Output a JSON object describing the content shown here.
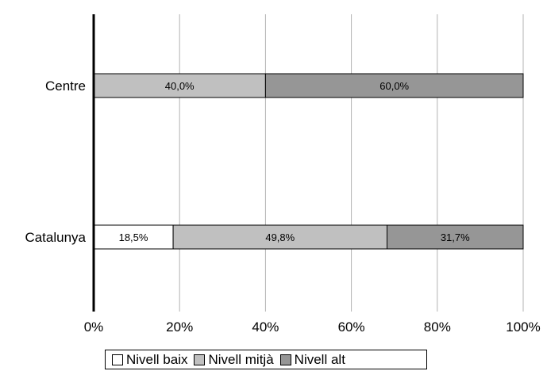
{
  "chart_data": {
    "type": "bar",
    "orientation": "horizontal",
    "stacked": "percent",
    "categories": [
      "Centre",
      "Catalunya"
    ],
    "series": [
      {
        "name": "Nivell baix",
        "values": [
          0,
          18.5
        ],
        "labels": [
          "",
          "18,5%"
        ],
        "color": "#ffffff"
      },
      {
        "name": "Nivell mitjà",
        "values": [
          40.0,
          49.8
        ],
        "labels": [
          "40,0%",
          "49,8%"
        ],
        "color": "#c0c0c0"
      },
      {
        "name": "Nivell alt",
        "values": [
          60.0,
          31.7
        ],
        "labels": [
          "60,0%",
          "31,7%"
        ],
        "color": "#969696"
      }
    ],
    "xlim": [
      0,
      100
    ],
    "xticks": [
      0,
      20,
      40,
      60,
      80,
      100
    ],
    "xtick_labels": [
      "0%",
      "20%",
      "40%",
      "60%",
      "80%",
      "100%"
    ],
    "grid": true,
    "legend_position": "bottom"
  }
}
